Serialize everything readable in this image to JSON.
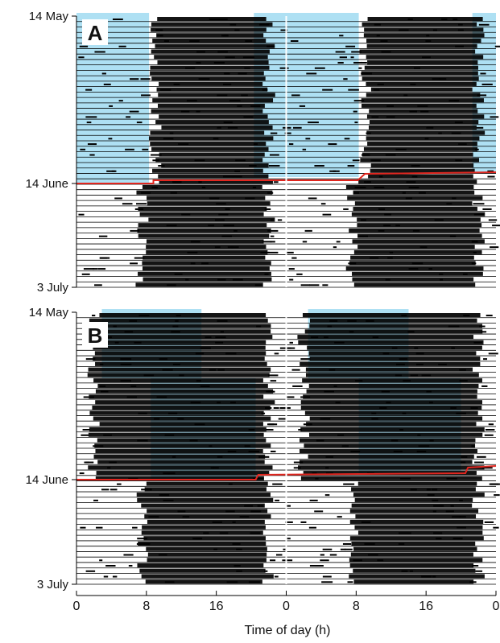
{
  "chart_data": [
    {
      "type": "actogram",
      "panel_label": "A",
      "xlabel": "Time of day (h)",
      "x_ticks": [
        "0",
        "8",
        "16",
        "0",
        "8",
        "16",
        "0"
      ],
      "xlim": [
        0,
        48
      ],
      "y_ticks": [
        "14 May",
        "14 June",
        "3 July"
      ],
      "ylim": [
        "14 May",
        "3 July"
      ],
      "double_plotted": true,
      "light_periods": [
        {
          "date_start": "14 May",
          "date_end": "14 June",
          "x_start": 0,
          "x_end": 8
        },
        {
          "date_start": "14 May",
          "date_end": "14 June",
          "x_start": 24,
          "x_end": 32
        },
        {
          "date_start": "14 May",
          "date_end": "14 June",
          "x_start": 48,
          "x_end": 48
        }
      ],
      "light_color": "#aee0f3",
      "transition_line_color": "#e0261f",
      "activity_color": "#000000"
    },
    {
      "type": "actogram",
      "panel_label": "B",
      "xlabel": "Time of day (h)",
      "x_ticks": [
        "0",
        "8",
        "16",
        "0",
        "8",
        "16",
        "0"
      ],
      "xlim": [
        0,
        48
      ],
      "y_ticks": [
        "14 May",
        "14 June",
        "3 July"
      ],
      "ylim": [
        "14 May",
        "3 July"
      ],
      "double_plotted": true,
      "light_periods": [
        {
          "date_start": "14 May",
          "date_end": "14 June",
          "x_start": 2.9,
          "x_end": 14.3
        },
        {
          "date_start": "14 May",
          "date_end": "14 June",
          "x_start": 8.5,
          "x_end": 20.5
        }
      ],
      "light_color": "#aee0f3",
      "transition_line_color": "#e0261f",
      "activity_color": "#000000"
    }
  ],
  "figure": {
    "xlabel": "Time of day (h)",
    "panel_labels": [
      "A",
      "B"
    ]
  }
}
